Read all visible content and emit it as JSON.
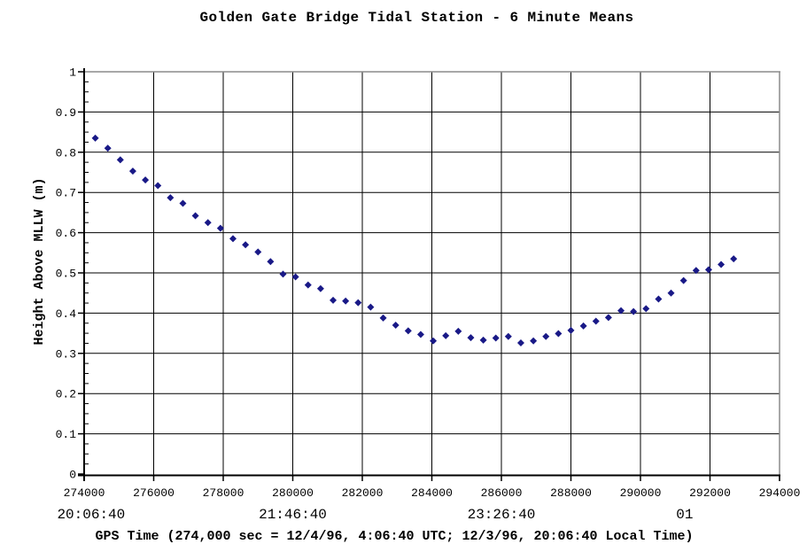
{
  "page": {
    "background": "#ffffff"
  },
  "chart_data": {
    "type": "scatter",
    "title": "Golden Gate Bridge Tidal Station - 6 Minute Means",
    "ylabel": "Height Above MLLW (m)",
    "xlabel": "GPS Time (274,000 sec = 12/4/96, 4:06:40 UTC; 12/3/96, 20:06:40 Local Time)",
    "xlim": [
      274000,
      294000
    ],
    "ylim": [
      0,
      1
    ],
    "grid": true,
    "legend": "none",
    "x_tick_step": 2000,
    "y_tick_step": 0.1,
    "y_minor_tick_step": 0.025,
    "x_tick_labels": [
      "274000",
      "276000",
      "278000",
      "280000",
      "282000",
      "284000",
      "286000",
      "288000",
      "290000",
      "292000",
      "294000"
    ],
    "y_tick_labels": [
      "0",
      "0.1",
      "0.2",
      "0.3",
      "0.4",
      "0.5",
      "0.6",
      "0.7",
      "0.8",
      "0.9",
      "1"
    ],
    "time_axis_labels": [
      {
        "label": "20:06:40",
        "x": 274200
      },
      {
        "label": "21:46:40",
        "x": 280000
      },
      {
        "label": "23:26:40",
        "x": 286000
      },
      {
        "label": "01",
        "x": 291270
      }
    ],
    "marker": {
      "shape": "diamond",
      "color": "#191987",
      "size": 8
    },
    "colors": {
      "gridline": "#000000",
      "axis": "#000000",
      "outer_border": "#8c8c8c",
      "text": "#000000"
    },
    "series": [
      {
        "name": "tide_height_6_min_means",
        "x": [
          274320,
          274680,
          275040,
          275400,
          275760,
          276120,
          276480,
          276840,
          277200,
          277560,
          277920,
          278280,
          278640,
          279000,
          279360,
          279720,
          280080,
          280440,
          280800,
          281160,
          281520,
          281880,
          282240,
          282600,
          282960,
          283320,
          283680,
          284040,
          284400,
          284760,
          285120,
          285480,
          285840,
          286200,
          286560,
          286920,
          287280,
          287640,
          288000,
          288360,
          288720,
          289080,
          289440,
          289800,
          290160,
          290520,
          290880,
          291240,
          291600,
          291960,
          292320,
          292680
        ],
        "y": [
          0.835,
          0.81,
          0.781,
          0.753,
          0.731,
          0.717,
          0.687,
          0.673,
          0.642,
          0.625,
          0.611,
          0.585,
          0.57,
          0.552,
          0.528,
          0.497,
          0.49,
          0.47,
          0.461,
          0.432,
          0.43,
          0.426,
          0.415,
          0.388,
          0.37,
          0.356,
          0.347,
          0.331,
          0.344,
          0.355,
          0.339,
          0.333,
          0.338,
          0.342,
          0.326,
          0.331,
          0.342,
          0.349,
          0.357,
          0.368,
          0.38,
          0.389,
          0.406,
          0.404,
          0.411,
          0.435,
          0.45,
          0.481,
          0.506,
          0.508,
          0.521,
          0.535
        ]
      }
    ]
  }
}
